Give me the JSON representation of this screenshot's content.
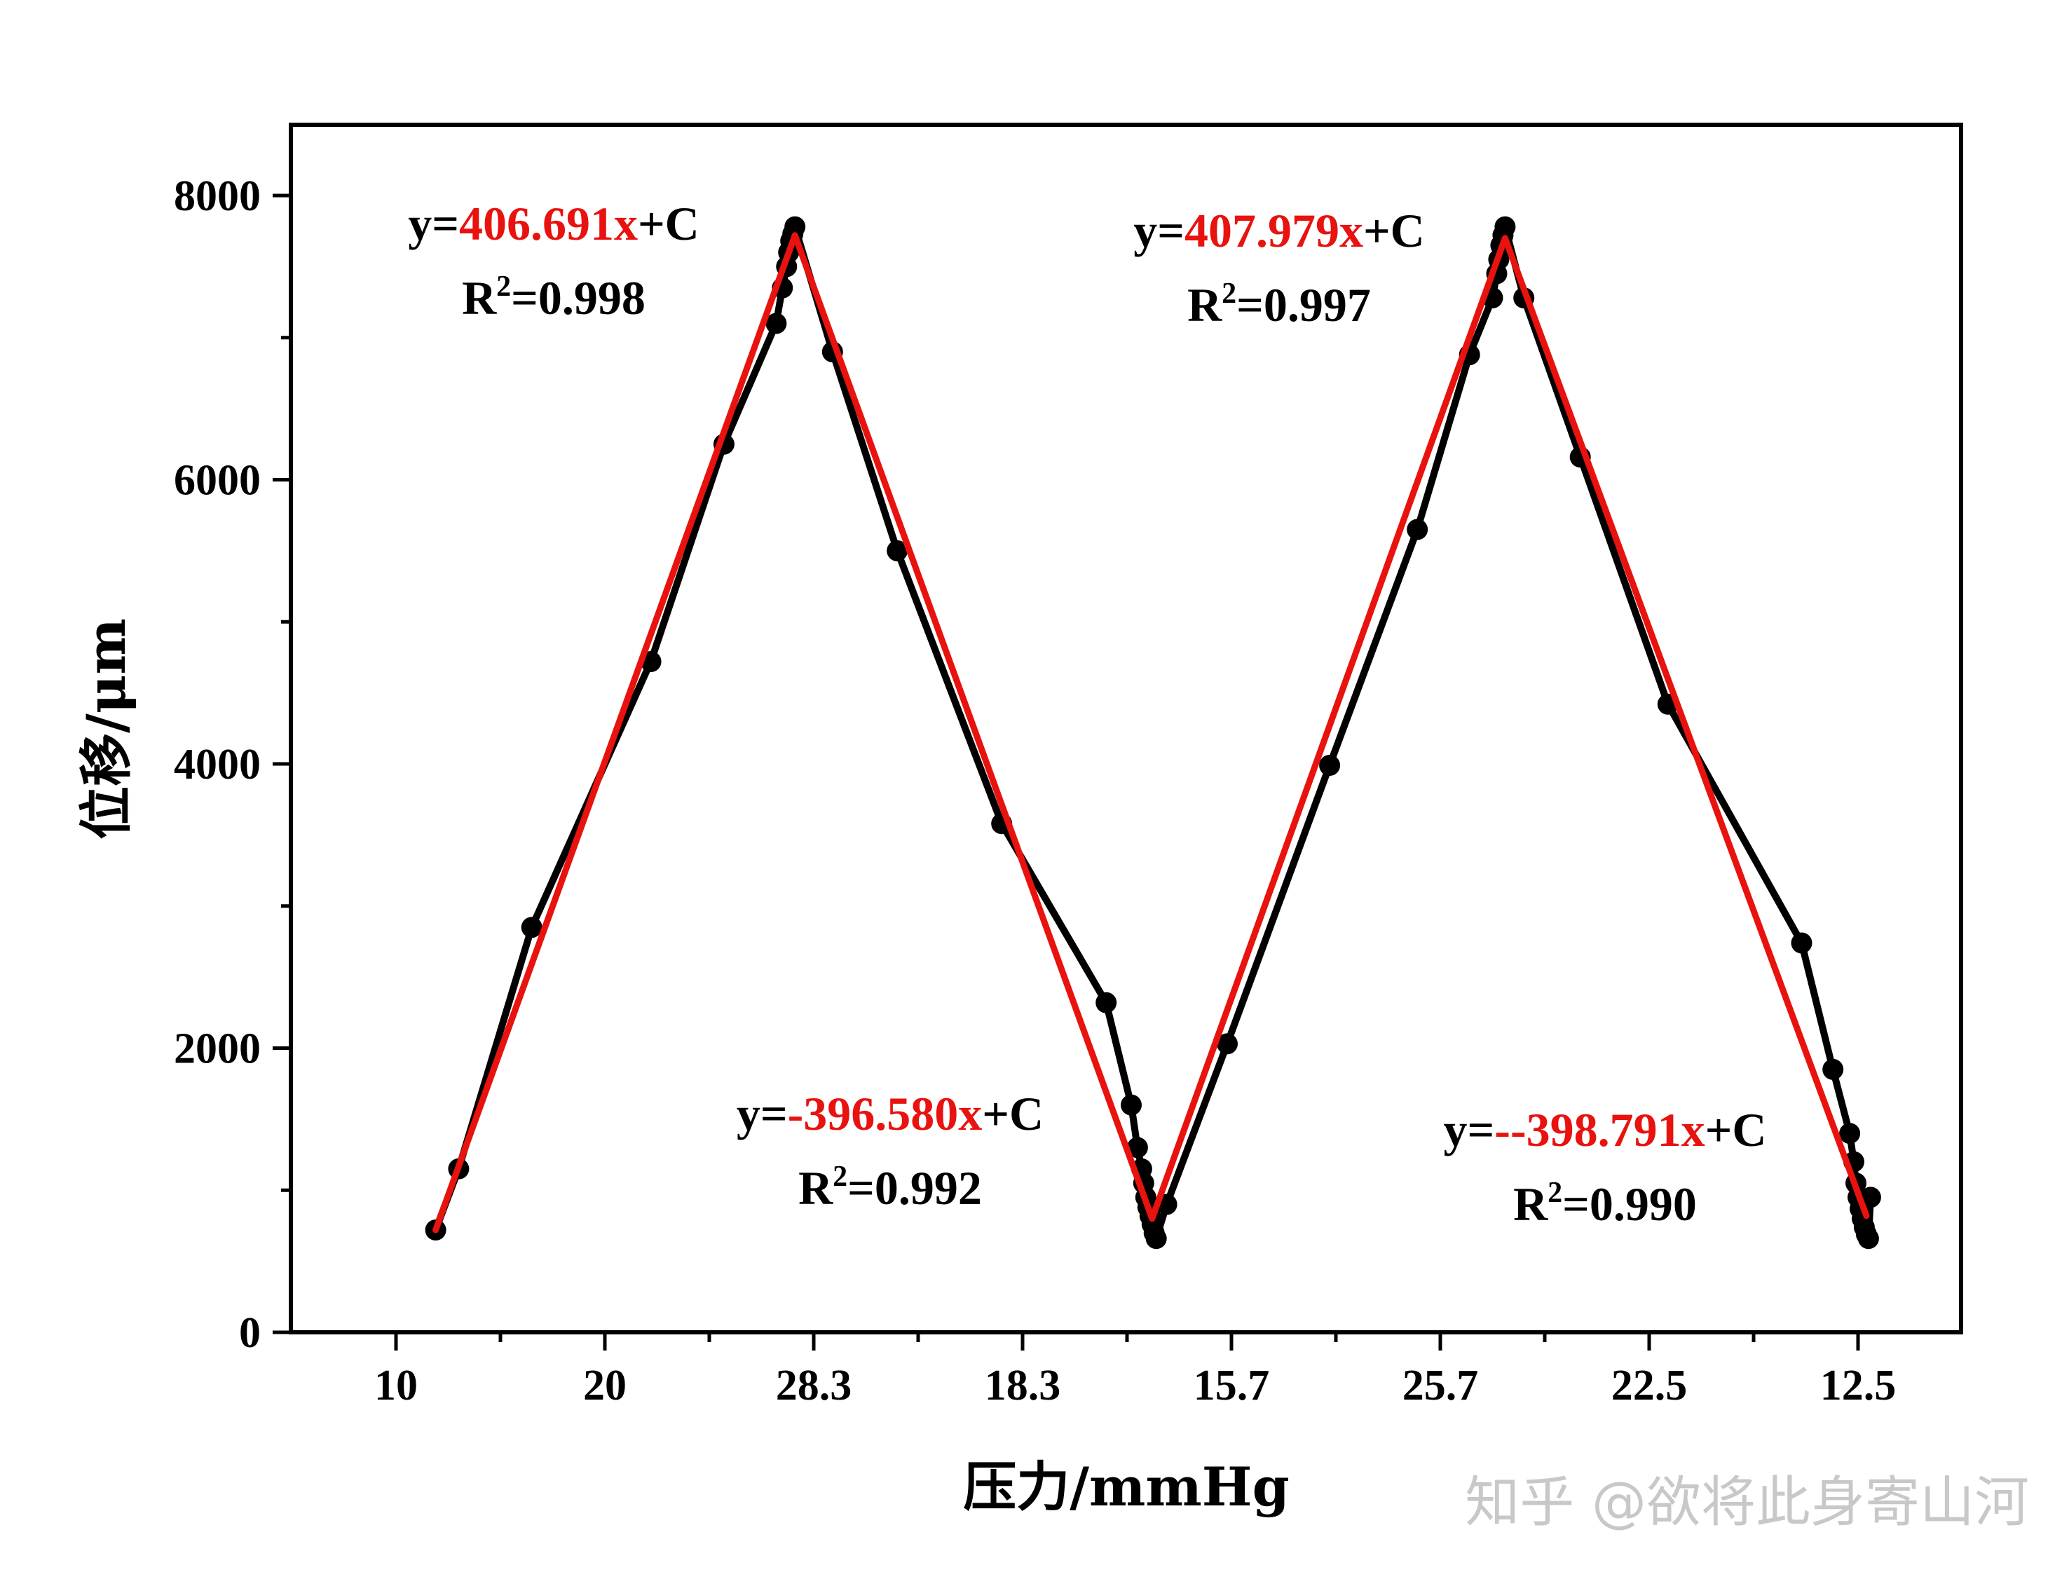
{
  "chart_data": {
    "type": "line",
    "xlabel": "压力/mmHg",
    "ylabel": "位移/μm",
    "ylim": [
      0,
      8500
    ],
    "y_ticks": [
      0,
      2000,
      4000,
      6000,
      8000
    ],
    "y_tick_labels": [
      "0",
      "2000",
      "4000",
      "6000",
      "8000"
    ],
    "x_tick_labels": [
      "10",
      "20",
      "28.3",
      "18.3",
      "15.7",
      "25.7",
      "22.5",
      "12.5"
    ],
    "grid": false,
    "series": [
      {
        "color": "#000000",
        "marker": "circle",
        "points": [
          [
            0.19,
            720
          ],
          [
            0.3,
            1150
          ],
          [
            0.65,
            2850
          ],
          [
            1.22,
            4720
          ],
          [
            1.57,
            6250
          ],
          [
            1.82,
            7100
          ],
          [
            1.85,
            7350
          ],
          [
            1.87,
            7500
          ],
          [
            1.88,
            7600
          ],
          [
            1.89,
            7680
          ],
          [
            1.9,
            7730
          ],
          [
            1.91,
            7780
          ],
          [
            2.09,
            6900
          ],
          [
            2.4,
            5500
          ],
          [
            2.9,
            3580
          ],
          [
            3.4,
            2320
          ],
          [
            3.52,
            1600
          ],
          [
            3.55,
            1300
          ],
          [
            3.57,
            1150
          ],
          [
            3.58,
            1050
          ],
          [
            3.59,
            950
          ],
          [
            3.6,
            880
          ],
          [
            3.61,
            820
          ],
          [
            3.62,
            760
          ],
          [
            3.63,
            700
          ],
          [
            3.64,
            660
          ],
          [
            3.69,
            900
          ],
          [
            3.98,
            2030
          ],
          [
            4.47,
            3990
          ],
          [
            4.89,
            5650
          ],
          [
            5.14,
            6880
          ],
          [
            5.25,
            7280
          ],
          [
            5.27,
            7450
          ],
          [
            5.28,
            7550
          ],
          [
            5.29,
            7650
          ],
          [
            5.3,
            7720
          ],
          [
            5.31,
            7780
          ],
          [
            5.4,
            7280
          ],
          [
            5.67,
            6160
          ],
          [
            6.09,
            4420
          ],
          [
            6.73,
            2740
          ],
          [
            6.88,
            1850
          ],
          [
            6.96,
            1400
          ],
          [
            6.98,
            1200
          ],
          [
            6.99,
            1050
          ],
          [
            7.0,
            950
          ],
          [
            7.01,
            870
          ],
          [
            7.02,
            800
          ],
          [
            7.03,
            740
          ],
          [
            7.04,
            690
          ],
          [
            7.05,
            660
          ],
          [
            7.06,
            950
          ]
        ]
      },
      {
        "color": "#e8120f",
        "marker": "none",
        "points": [
          [
            0.19,
            720
          ],
          [
            1.91,
            7720
          ],
          [
            3.62,
            800
          ],
          [
            5.31,
            7700
          ],
          [
            7.04,
            820
          ]
        ]
      }
    ],
    "annotations": [
      {
        "prefix": "y=",
        "coef": "406.691x",
        "suffix": "+C",
        "r2_label": "R",
        "r2_exp": "2",
        "r2_value": "=0.998"
      },
      {
        "prefix": "y=",
        "coef": "407.979x",
        "suffix": "+C",
        "r2_label": "R",
        "r2_exp": "2",
        "r2_value": "=0.997"
      },
      {
        "prefix": "y=",
        "coef": "-396.580x",
        "suffix": "+C",
        "r2_label": "R",
        "r2_exp": "2",
        "r2_value": "=0.992"
      },
      {
        "prefix": "y=",
        "coef": "--398.791x",
        "suffix": "+C",
        "r2_label": "R",
        "r2_exp": "2",
        "r2_value": "=0.990"
      }
    ]
  },
  "watermark": "知乎 @欲将此身寄山河"
}
